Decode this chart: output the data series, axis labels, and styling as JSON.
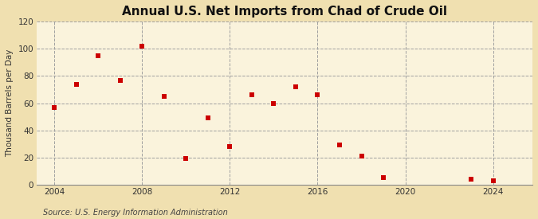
{
  "title": "Annual U.S. Net Imports from Chad of Crude Oil",
  "ylabel": "Thousand Barrels per Day",
  "source": "Source: U.S. Energy Information Administration",
  "background_color": "#f0e0b0",
  "plot_background_color": "#faf3dc",
  "marker_color": "#cc0000",
  "marker": "s",
  "marker_size": 4,
  "xlim": [
    2003.2,
    2025.8
  ],
  "ylim": [
    0,
    120
  ],
  "yticks": [
    0,
    20,
    40,
    60,
    80,
    100,
    120
  ],
  "xticks": [
    2004,
    2008,
    2012,
    2016,
    2020,
    2024
  ],
  "grid_color": "#a0a0a0",
  "years": [
    2004,
    2005,
    2006,
    2007,
    2008,
    2009,
    2010,
    2011,
    2012,
    2013,
    2014,
    2015,
    2016,
    2017,
    2018,
    2019,
    2023,
    2024
  ],
  "values": [
    57,
    74,
    95,
    77,
    102,
    65,
    19,
    49,
    28,
    66,
    60,
    72,
    66,
    29,
    21,
    5,
    4,
    3
  ],
  "title_fontsize": 11,
  "ylabel_fontsize": 7.5,
  "tick_fontsize": 7.5,
  "source_fontsize": 7
}
